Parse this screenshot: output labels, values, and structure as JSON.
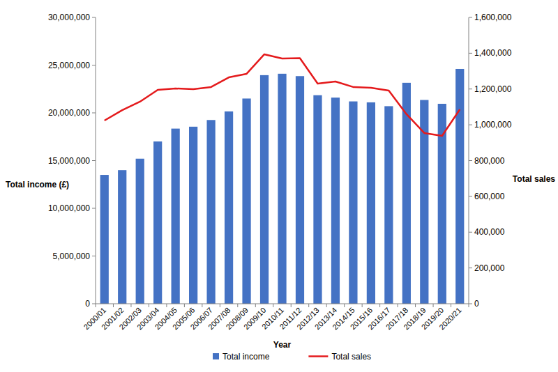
{
  "chart_data": {
    "type": "bar",
    "x_label": "Year",
    "y_label": "Total income (£)",
    "y2_label": "Total sales",
    "categories": [
      "2000/01",
      "2001/02",
      "2002/03",
      "2003/04",
      "2004/05",
      "2005/06",
      "2006/07",
      "2007/08",
      "2008/09",
      "2009/10",
      "2010/11",
      "2011/12",
      "2012/13",
      "2013/14",
      "2014/15",
      "2015/16",
      "2016/17",
      "2017/18",
      "2018/19",
      "2019/20",
      "2020/21"
    ],
    "series": [
      {
        "name": "Total income",
        "type": "bar",
        "color": "#4472c4",
        "values": [
          13500000,
          14000000,
          15200000,
          17000000,
          18350000,
          18550000,
          19250000,
          20150000,
          21500000,
          23950000,
          24100000,
          23850000,
          21850000,
          21600000,
          21200000,
          21100000,
          20700000,
          23150000,
          21350000,
          20950000,
          24600000
        ]
      },
      {
        "name": "Total sales",
        "type": "line",
        "axis": "y2",
        "color": "#e41a1c",
        "values": [
          1024000,
          1082000,
          1129000,
          1195000,
          1203000,
          1199000,
          1211000,
          1265000,
          1285000,
          1394000,
          1370000,
          1372000,
          1230000,
          1242000,
          1211000,
          1207000,
          1191000,
          1059000,
          954000,
          938000,
          1086000
        ]
      }
    ],
    "ylim": [
      0,
      30000000
    ],
    "yticks": [
      0,
      {
        "value": 5000000,
        "label": "5,000,000"
      },
      {
        "value": 10000000,
        "label": "10,000,000"
      },
      {
        "value": 15000000,
        "label": "15,000,000"
      },
      {
        "value": 20000000,
        "label": "20,000,000"
      },
      {
        "value": 25000000,
        "label": "25,000,000"
      },
      {
        "value": 30000000,
        "label": "30,000,000"
      }
    ],
    "y2lim": [
      0,
      1600000
    ],
    "y2ticks": [
      0,
      {
        "value": 200000,
        "label": "200,000"
      },
      {
        "value": 400000,
        "label": "400,000"
      },
      {
        "value": 600000,
        "label": "600,000"
      },
      {
        "value": 800000,
        "label": "800,000"
      },
      {
        "value": 1000000,
        "label": "1,000,000"
      },
      {
        "value": 1200000,
        "label": "1,200,000"
      },
      {
        "value": 1400000,
        "label": "1,400,000"
      },
      {
        "value": 1600000,
        "label": "1,600,000"
      }
    ],
    "grid": false,
    "legend": "bottom"
  }
}
